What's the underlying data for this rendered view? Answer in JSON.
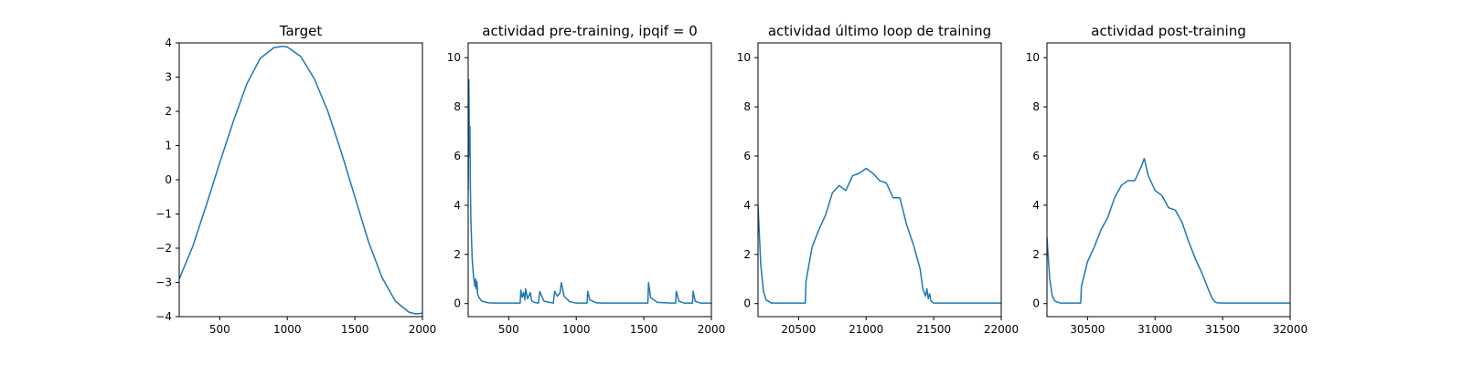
{
  "chart_data": [
    {
      "type": "line",
      "title": "Target",
      "xlim": [
        200,
        2000
      ],
      "ylim": [
        -4,
        4
      ],
      "xticks": [
        500,
        1000,
        1500,
        2000
      ],
      "yticks": [
        -4,
        -3,
        -2,
        -1,
        0,
        1,
        2,
        3,
        4
      ],
      "xtick_labels": [
        "500",
        "1000",
        "1500",
        "2000"
      ],
      "ytick_labels": [
        "−4",
        "−3",
        "−2",
        "−1",
        "0",
        "1",
        "2",
        "3",
        "4"
      ],
      "series_color": "#1f77b4",
      "x": [
        200,
        300,
        400,
        500,
        600,
        700,
        800,
        900,
        965,
        1000,
        1100,
        1200,
        1300,
        1400,
        1500,
        1600,
        1700,
        1800,
        1900,
        1950,
        2000
      ],
      "y": [
        -2.9,
        -1.95,
        -0.75,
        0.5,
        1.7,
        2.8,
        3.55,
        3.86,
        3.9,
        3.88,
        3.6,
        2.95,
        2.0,
        0.8,
        -0.5,
        -1.8,
        -2.85,
        -3.55,
        -3.87,
        -3.92,
        -3.9
      ]
    },
    {
      "type": "line",
      "title": "actividad pre-training, ipqif = 0",
      "xlim": [
        200,
        2000
      ],
      "ylim": [
        -0.53,
        10.6
      ],
      "xticks": [
        500,
        1000,
        1500,
        2000
      ],
      "yticks": [
        0,
        2,
        4,
        6,
        8,
        10
      ],
      "xtick_labels": [
        "500",
        "1000",
        "1500",
        "2000"
      ],
      "ytick_labels": [
        "0",
        "2",
        "4",
        "6",
        "8",
        "10"
      ],
      "series_color": "#1f77b4",
      "x": [
        200,
        205,
        210,
        213,
        216,
        220,
        230,
        240,
        250,
        255,
        260,
        265,
        270,
        280,
        300,
        350,
        400,
        500,
        585,
        590,
        600,
        610,
        620,
        625,
        640,
        660,
        670,
        690,
        720,
        730,
        760,
        830,
        840,
        860,
        880,
        890,
        910,
        950,
        1000,
        1080,
        1085,
        1100,
        1150,
        1200,
        1300,
        1400,
        1500,
        1530,
        1535,
        1550,
        1600,
        1700,
        1735,
        1740,
        1760,
        1800,
        1860,
        1865,
        1880,
        1920,
        2000
      ],
      "y": [
        4.6,
        9.1,
        6.0,
        7.2,
        5.0,
        3.4,
        1.8,
        1.1,
        0.7,
        1.0,
        0.6,
        0.9,
        0.4,
        0.25,
        0.1,
        0.03,
        0.02,
        0.02,
        0.02,
        0.55,
        0.25,
        0.45,
        0.15,
        0.6,
        0.2,
        0.45,
        0.12,
        0.05,
        0.02,
        0.5,
        0.1,
        0.02,
        0.5,
        0.3,
        0.45,
        0.85,
        0.3,
        0.08,
        0.02,
        0.02,
        0.5,
        0.15,
        0.03,
        0.02,
        0.02,
        0.02,
        0.02,
        0.02,
        0.85,
        0.25,
        0.05,
        0.02,
        0.02,
        0.5,
        0.1,
        0.02,
        0.02,
        0.5,
        0.1,
        0.02,
        0.02
      ]
    },
    {
      "type": "line",
      "title": "actividad último loop de training",
      "xlim": [
        20200,
        22000
      ],
      "ylim": [
        -0.53,
        10.6
      ],
      "xticks": [
        20500,
        21000,
        21500,
        22000
      ],
      "yticks": [
        0,
        2,
        4,
        6,
        8,
        10
      ],
      "xtick_labels": [
        "20500",
        "21000",
        "21500",
        "22000"
      ],
      "ytick_labels": [
        "0",
        "2",
        "4",
        "6",
        "8",
        "10"
      ],
      "series_color": "#1f77b4",
      "x": [
        20200,
        20220,
        20240,
        20260,
        20300,
        20400,
        20500,
        20550,
        20555,
        20600,
        20650,
        20700,
        20750,
        20800,
        20850,
        20900,
        20950,
        21000,
        21050,
        21100,
        21150,
        21200,
        21250,
        21300,
        21350,
        21400,
        21420,
        21440,
        21450,
        21460,
        21470,
        21480,
        21500,
        21600,
        21800,
        22000
      ],
      "y": [
        4.0,
        1.6,
        0.5,
        0.15,
        0.02,
        0.02,
        0.02,
        0.02,
        0.9,
        2.3,
        3.0,
        3.6,
        4.5,
        4.8,
        4.6,
        5.2,
        5.3,
        5.5,
        5.3,
        5.0,
        4.9,
        4.3,
        4.3,
        3.2,
        2.4,
        1.4,
        0.6,
        0.3,
        0.6,
        0.2,
        0.4,
        0.1,
        0.02,
        0.02,
        0.02,
        0.02
      ]
    },
    {
      "type": "line",
      "title": "actividad post-training",
      "xlim": [
        30200,
        32000
      ],
      "ylim": [
        -0.53,
        10.6
      ],
      "xticks": [
        30500,
        31000,
        31500,
        32000
      ],
      "yticks": [
        0,
        2,
        4,
        6,
        8,
        10
      ],
      "xtick_labels": [
        "30500",
        "31000",
        "31500",
        "32000"
      ],
      "ytick_labels": [
        "0",
        "2",
        "4",
        "6",
        "8",
        "10"
      ],
      "series_color": "#1f77b4",
      "x": [
        30200,
        30220,
        30240,
        30260,
        30300,
        30400,
        30450,
        30455,
        30500,
        30550,
        30600,
        30650,
        30700,
        30750,
        30800,
        30850,
        30900,
        30920,
        30950,
        31000,
        31050,
        31100,
        31150,
        31200,
        31250,
        31300,
        31350,
        31400,
        31420,
        31440,
        31460,
        31500,
        31600,
        31800,
        32000
      ],
      "y": [
        2.7,
        1.0,
        0.3,
        0.1,
        0.02,
        0.02,
        0.02,
        0.7,
        1.7,
        2.3,
        3.0,
        3.5,
        4.3,
        4.8,
        5.0,
        5.0,
        5.6,
        5.9,
        5.2,
        4.6,
        4.4,
        3.9,
        3.8,
        3.3,
        2.5,
        1.8,
        1.2,
        0.5,
        0.25,
        0.08,
        0.03,
        0.02,
        0.02,
        0.02,
        0.02
      ]
    }
  ]
}
